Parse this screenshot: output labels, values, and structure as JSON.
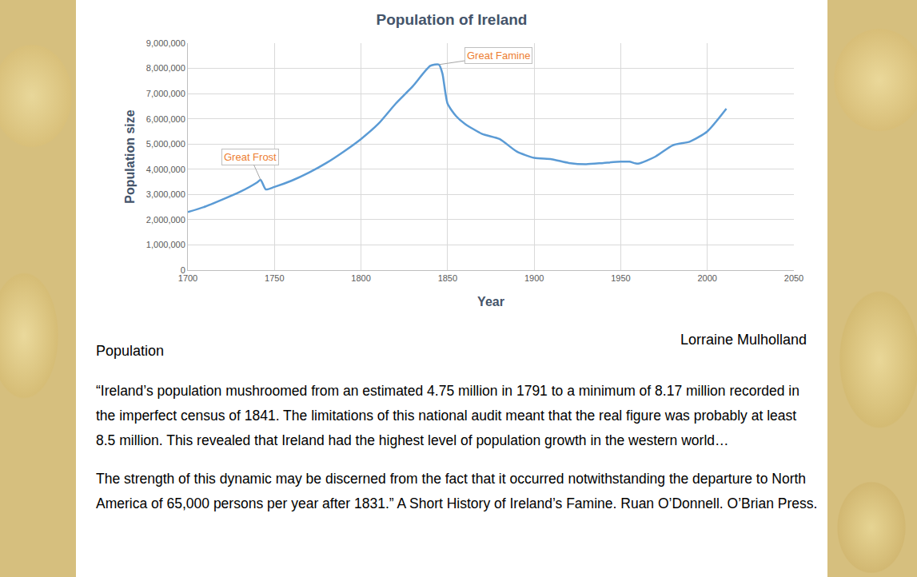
{
  "chart_data": {
    "type": "line",
    "title": "Population of Ireland",
    "x_label": "Year",
    "y_label": "Population size",
    "color": "#5b9bd5",
    "x": [
      1700,
      1710,
      1720,
      1730,
      1740,
      1742,
      1745,
      1750,
      1760,
      1770,
      1780,
      1790,
      1800,
      1810,
      1820,
      1830,
      1840,
      1845,
      1847,
      1850,
      1855,
      1860,
      1870,
      1880,
      1890,
      1900,
      1910,
      1920,
      1930,
      1940,
      1950,
      1955,
      1960,
      1970,
      1980,
      1990,
      2000,
      2011
    ],
    "values": [
      2300000,
      2520000,
      2800000,
      3100000,
      3480000,
      3580000,
      3200000,
      3300000,
      3550000,
      3870000,
      4250000,
      4700000,
      5200000,
      5800000,
      6600000,
      7300000,
      8100000,
      8150000,
      7800000,
      6600000,
      6100000,
      5800000,
      5400000,
      5200000,
      4700000,
      4450000,
      4400000,
      4250000,
      4200000,
      4250000,
      4300000,
      4300000,
      4220000,
      4500000,
      4950000,
      5100000,
      5500000,
      6400000
    ],
    "xlim": [
      1700,
      2050
    ],
    "xticks": [
      1700,
      1750,
      1800,
      1850,
      1900,
      1950,
      2000,
      2050
    ],
    "ylim": [
      0,
      9000000
    ],
    "yticks": [
      0,
      {
        "value": 1000000,
        "label": "1,000,000"
      },
      {
        "value": 2000000,
        "label": "2,000,000"
      },
      {
        "value": 3000000,
        "label": "3,000,000"
      },
      {
        "value": 4000000,
        "label": "4,000,000"
      },
      {
        "value": 5000000,
        "label": "5,000,000"
      },
      {
        "value": 6000000,
        "label": "6,000,000"
      },
      {
        "value": 7000000,
        "label": "7,000,000"
      },
      {
        "value": 8000000,
        "label": "8,000,000"
      },
      {
        "value": 9000000,
        "label": "9,000,000"
      }
    ],
    "grid": true,
    "annotations": [
      {
        "text": "Great Frost",
        "x": 1742,
        "y": 3580000
      },
      {
        "text": "Great Famine",
        "x": 1845,
        "y": 8150000
      }
    ]
  },
  "credit": "Lorraine Mulholland",
  "heading": "Population",
  "paragraphs": [
    "“Ireland’s population mushroomed from an estimated 4.75 million in 1791 to a minimum of 8.17 million recorded in the imperfect census of 1841. The limitations of this national audit meant that the real figure was probably at least 8.5 million. This revealed that Ireland had the highest level of population growth in the western world…",
    "The strength of this dynamic may be discerned from the fact that it occurred notwithstanding the departure to North America of 65,000 persons per year after 1831.” A Short History of Ireland’s Famine. Ruan O’Donnell. O’Brian Press."
  ]
}
